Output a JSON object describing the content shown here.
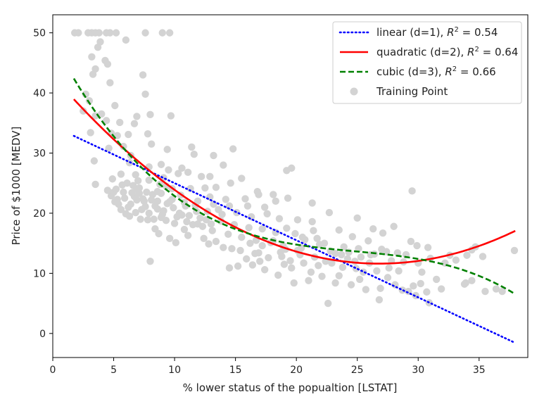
{
  "chart_data": {
    "type": "scatter",
    "title": "",
    "xlabel": "% lower status of the popualtion [LSTAT]",
    "ylabel": "Price of $1000 [MEDV]",
    "xlim": [
      0,
      39
    ],
    "ylim": [
      -4,
      53
    ],
    "xticks": [
      0,
      5,
      10,
      15,
      20,
      25,
      30,
      35
    ],
    "yticks": [
      0,
      10,
      20,
      30,
      40,
      50
    ],
    "grid": false,
    "legend_position": "top-right",
    "legend": [
      {
        "key": "linear",
        "prefix": "linear (d=1), ",
        "r2": "0.54",
        "color": "#0000ff",
        "style": "dotted"
      },
      {
        "key": "quadratic",
        "prefix": "quadratic (d=2), ",
        "r2": "0.64",
        "color": "#ff0000",
        "style": "solid"
      },
      {
        "key": "cubic",
        "prefix": "cubic (d=3), ",
        "r2": "0.66",
        "color": "#008000",
        "style": "dashed"
      },
      {
        "key": "training",
        "prefix": "Training Point",
        "r2": "",
        "color": "#d3d3d3",
        "style": "marker"
      }
    ],
    "fit_range": [
      1.73,
      37.97
    ],
    "series": [
      {
        "name": "linear (d=1)",
        "kind": "polynomial",
        "coefficients": [
          34.5,
          -0.95
        ],
        "color": "#0000ff",
        "style": "dotted"
      },
      {
        "name": "quadratic (d=2)",
        "kind": "polynomial",
        "coefficients": [
          42.86,
          -2.333,
          0.04355
        ],
        "color": "#ff0000",
        "style": "solid"
      },
      {
        "name": "cubic (d=3)",
        "kind": "polynomial",
        "coefficients": [
          48.65,
          -3.866,
          0.1487,
          -0.002004
        ],
        "color": "#008000",
        "style": "dashed"
      },
      {
        "name": "Training Point",
        "kind": "scatter",
        "color": "#d3d3d3",
        "points": [
          [
            1.8,
            50
          ],
          [
            2.1,
            50
          ],
          [
            2.9,
            50
          ],
          [
            3.2,
            50
          ],
          [
            3.5,
            50
          ],
          [
            3.8,
            50
          ],
          [
            4.4,
            50
          ],
          [
            4.7,
            50
          ],
          [
            5.2,
            50
          ],
          [
            7.6,
            50
          ],
          [
            9.0,
            50
          ],
          [
            9.6,
            50
          ],
          [
            6.0,
            48.8
          ],
          [
            3.9,
            48.5
          ],
          [
            3.7,
            47.6
          ],
          [
            4.3,
            45.4
          ],
          [
            3.2,
            46.0
          ],
          [
            4.5,
            44.8
          ],
          [
            3.5,
            44.0
          ],
          [
            3.3,
            43.1
          ],
          [
            7.4,
            43.0
          ],
          [
            4.7,
            41.7
          ],
          [
            2.7,
            39.8
          ],
          [
            7.6,
            39.8
          ],
          [
            3.0,
            38.7
          ],
          [
            5.1,
            37.9
          ],
          [
            2.5,
            37.0
          ],
          [
            4.0,
            36.5
          ],
          [
            9.7,
            36.2
          ],
          [
            6.9,
            36.1
          ],
          [
            8.0,
            36.4
          ],
          [
            3.5,
            36.2
          ],
          [
            4.4,
            35.4
          ],
          [
            5.5,
            35.1
          ],
          [
            6.7,
            34.9
          ],
          [
            3.1,
            33.4
          ],
          [
            4.8,
            33.3
          ],
          [
            6.2,
            33.1
          ],
          [
            7.8,
            33.2
          ],
          [
            5.3,
            32.9
          ],
          [
            8.1,
            31.5
          ],
          [
            5.8,
            31.1
          ],
          [
            4.6,
            30.8
          ],
          [
            9.4,
            30.6
          ],
          [
            11.4,
            31.0
          ],
          [
            14.8,
            30.7
          ],
          [
            11.6,
            29.8
          ],
          [
            13.2,
            29.6
          ],
          [
            6.4,
            29.6
          ],
          [
            3.4,
            28.7
          ],
          [
            6.3,
            28.4
          ],
          [
            8.9,
            28.1
          ],
          [
            7.9,
            27.7
          ],
          [
            10.6,
            27.5
          ],
          [
            19.6,
            27.5
          ],
          [
            19.2,
            27.1
          ],
          [
            10.3,
            26.6
          ],
          [
            6.8,
            26.4
          ],
          [
            9.1,
            25.9
          ],
          [
            12.2,
            26.1
          ],
          [
            14.6,
            25.0
          ],
          [
            3.5,
            24.8
          ],
          [
            5.7,
            24.7
          ],
          [
            7.1,
            24.2
          ],
          [
            9.3,
            24.5
          ],
          [
            11.3,
            24.1
          ],
          [
            13.4,
            24.3
          ],
          [
            16.8,
            23.6
          ],
          [
            18.1,
            23.1
          ],
          [
            19.3,
            22.5
          ],
          [
            29.5,
            23.7
          ],
          [
            21.3,
            21.7
          ],
          [
            14.2,
            22.3
          ],
          [
            15.8,
            22.4
          ],
          [
            12.9,
            22.7
          ],
          [
            5.0,
            23.5
          ],
          [
            5.3,
            22.3
          ],
          [
            6.7,
            22.8
          ],
          [
            7.4,
            22.4
          ],
          [
            8.2,
            23.1
          ],
          [
            9.8,
            22.3
          ],
          [
            11.7,
            21.3
          ],
          [
            13.6,
            20.6
          ],
          [
            15.1,
            20.1
          ],
          [
            16.3,
            19.4
          ],
          [
            17.6,
            19.9
          ],
          [
            18.6,
            19.1
          ],
          [
            20.1,
            18.9
          ],
          [
            22.7,
            20.1
          ],
          [
            21.3,
            18.6
          ],
          [
            25.0,
            19.2
          ],
          [
            5.4,
            21.5
          ],
          [
            6.2,
            21.0
          ],
          [
            7.3,
            20.6
          ],
          [
            8.4,
            21.2
          ],
          [
            9.1,
            20.4
          ],
          [
            10.4,
            20.0
          ],
          [
            11.2,
            19.6
          ],
          [
            12.6,
            18.9
          ],
          [
            13.8,
            18.7
          ],
          [
            14.9,
            18.1
          ],
          [
            16.1,
            17.6
          ],
          [
            17.2,
            17.4
          ],
          [
            18.3,
            16.8
          ],
          [
            19.9,
            16.6
          ],
          [
            21.4,
            17.1
          ],
          [
            23.5,
            17.2
          ],
          [
            26.3,
            17.4
          ],
          [
            27.1,
            16.7
          ],
          [
            28.0,
            17.8
          ],
          [
            24.6,
            16.1
          ],
          [
            25.9,
            15.4
          ],
          [
            20.7,
            15.6
          ],
          [
            6.0,
            19.9
          ],
          [
            7.8,
            18.9
          ],
          [
            8.9,
            19.3
          ],
          [
            10.0,
            18.3
          ],
          [
            11.0,
            18.6
          ],
          [
            12.3,
            17.8
          ],
          [
            13.1,
            17.1
          ],
          [
            14.4,
            16.5
          ],
          [
            15.5,
            16.0
          ],
          [
            16.7,
            15.5
          ],
          [
            17.9,
            15.1
          ],
          [
            18.9,
            14.6
          ],
          [
            20.4,
            14.2
          ],
          [
            21.9,
            14.8
          ],
          [
            22.8,
            13.7
          ],
          [
            23.7,
            13.1
          ],
          [
            24.3,
            13.5
          ],
          [
            26.1,
            13.1
          ],
          [
            27.4,
            13.6
          ],
          [
            28.3,
            13.4
          ],
          [
            29.9,
            14.6
          ],
          [
            30.8,
            14.3
          ],
          [
            34.4,
            13.9
          ],
          [
            34.7,
            14.4
          ],
          [
            37.9,
            13.8
          ],
          [
            8.0,
            12.0
          ],
          [
            10.1,
            15.1
          ],
          [
            12.8,
            14.9
          ],
          [
            14.0,
            14.3
          ],
          [
            15.4,
            13.8
          ],
          [
            16.6,
            13.3
          ],
          [
            17.7,
            12.6
          ],
          [
            18.8,
            12.8
          ],
          [
            19.5,
            12.1
          ],
          [
            20.6,
            11.7
          ],
          [
            21.8,
            11.3
          ],
          [
            22.9,
            11.7
          ],
          [
            23.8,
            11.0
          ],
          [
            24.9,
            10.8
          ],
          [
            25.5,
            10.2
          ],
          [
            26.6,
            10.4
          ],
          [
            27.6,
            10.9
          ],
          [
            28.4,
            10.4
          ],
          [
            15.2,
            11.2
          ],
          [
            16.4,
            11.4
          ],
          [
            17.4,
            10.6
          ],
          [
            18.5,
            9.7
          ],
          [
            19.8,
            8.4
          ],
          [
            21.0,
            8.8
          ],
          [
            22.1,
            9.5
          ],
          [
            23.2,
            8.4
          ],
          [
            24.5,
            8.1
          ],
          [
            25.7,
            7.3
          ],
          [
            26.9,
            7.5
          ],
          [
            28.7,
            7.2
          ],
          [
            29.6,
            7.9
          ],
          [
            29.8,
            6.3
          ],
          [
            30.7,
            6.9
          ],
          [
            30.9,
            5.1
          ],
          [
            31.9,
            7.4
          ],
          [
            33.9,
            8.4
          ],
          [
            34.4,
            8.8
          ],
          [
            36.9,
            7.0
          ],
          [
            22.6,
            5.0
          ],
          [
            26.8,
            5.6
          ],
          [
            29.2,
            7.0
          ],
          [
            6.6,
            24.6
          ],
          [
            7.5,
            22.0
          ],
          [
            8.6,
            22.0
          ],
          [
            9.6,
            21.9
          ],
          [
            10.8,
            21.8
          ],
          [
            11.9,
            22.0
          ],
          [
            12.7,
            20.3
          ],
          [
            13.9,
            19.8
          ],
          [
            10.2,
            19.4
          ],
          [
            11.5,
            18.1
          ],
          [
            8.4,
            17.4
          ],
          [
            8.7,
            16.6
          ],
          [
            9.6,
            15.8
          ],
          [
            12.4,
            15.8
          ],
          [
            13.4,
            15.3
          ],
          [
            14.7,
            14.1
          ],
          [
            16.9,
            13.4
          ],
          [
            17.2,
            14.6
          ],
          [
            18.1,
            15.4
          ],
          [
            19.1,
            14.0
          ],
          [
            20.3,
            13.1
          ],
          [
            21.5,
            12.7
          ],
          [
            22.4,
            12.0
          ],
          [
            19.6,
            10.9
          ],
          [
            14.5,
            10.9
          ],
          [
            15.9,
            12.4
          ],
          [
            23.2,
            13.3
          ],
          [
            24.2,
            12.4
          ],
          [
            25.3,
            12.7
          ],
          [
            26.4,
            13.2
          ],
          [
            27.8,
            12.1
          ],
          [
            28.8,
            11.9
          ],
          [
            30.0,
            11.7
          ],
          [
            30.3,
            10.2
          ],
          [
            31.0,
            12.5
          ],
          [
            5.6,
            26.5
          ],
          [
            4.9,
            25.7
          ],
          [
            6.1,
            25.0
          ],
          [
            7.0,
            25.4
          ],
          [
            7.9,
            25.5
          ],
          [
            8.8,
            24.8
          ],
          [
            5.2,
            24.0
          ],
          [
            6.5,
            23.4
          ],
          [
            7.7,
            23.5
          ],
          [
            8.9,
            23.3
          ],
          [
            10.5,
            23.0
          ],
          [
            4.8,
            22.9
          ],
          [
            5.9,
            22.5
          ],
          [
            6.9,
            22.2
          ],
          [
            8.1,
            22.2
          ],
          [
            9.4,
            21.6
          ],
          [
            10.9,
            21.2
          ],
          [
            5.1,
            21.9
          ],
          [
            6.4,
            21.5
          ],
          [
            7.6,
            21.1
          ],
          [
            8.6,
            20.7
          ],
          [
            9.9,
            20.9
          ],
          [
            11.8,
            20.3
          ],
          [
            5.6,
            20.6
          ],
          [
            6.8,
            20.1
          ],
          [
            7.9,
            20.0
          ],
          [
            9.0,
            19.8
          ],
          [
            10.6,
            19.7
          ],
          [
            12.1,
            19.2
          ],
          [
            6.3,
            19.5
          ],
          [
            7.2,
            19.0
          ],
          [
            8.3,
            19.0
          ],
          [
            9.3,
            18.8
          ],
          [
            11.9,
            18.2
          ],
          [
            13.0,
            18.2
          ],
          [
            6.9,
            24.0
          ],
          [
            4.5,
            23.8
          ],
          [
            5.8,
            23.5
          ],
          [
            7.1,
            23.3
          ],
          [
            8.6,
            23.6
          ],
          [
            9.8,
            24.1
          ],
          [
            12.5,
            24.2
          ],
          [
            12.9,
            26.1
          ],
          [
            11.1,
            26.8
          ],
          [
            9.5,
            27.2
          ],
          [
            14.0,
            28.0
          ],
          [
            15.5,
            25.8
          ],
          [
            16.9,
            23.1
          ],
          [
            18.3,
            22.0
          ],
          [
            17.4,
            21.0
          ],
          [
            16.0,
            21.2
          ],
          [
            14.5,
            21.2
          ],
          [
            13.2,
            21.5
          ],
          [
            10.8,
            17.3
          ],
          [
            11.1,
            16.3
          ],
          [
            19.2,
            17.5
          ],
          [
            20.5,
            16.0
          ],
          [
            21.7,
            15.8
          ],
          [
            22.3,
            15.0
          ],
          [
            23.9,
            14.4
          ],
          [
            25.1,
            14.1
          ],
          [
            20.1,
            13.8
          ],
          [
            24.8,
            12.0
          ],
          [
            17.0,
            12.0
          ],
          [
            19.0,
            11.5
          ],
          [
            16.2,
            15.0
          ],
          [
            18.7,
            13.5
          ],
          [
            21.2,
            10.2
          ],
          [
            23.5,
            9.6
          ],
          [
            25.2,
            9.0
          ],
          [
            26.0,
            11.7
          ],
          [
            27.5,
            9.3
          ],
          [
            28.1,
            8.1
          ],
          [
            30.2,
            8.3
          ],
          [
            31.5,
            9.0
          ],
          [
            33.8,
            8.2
          ],
          [
            35.5,
            7.0
          ],
          [
            36.4,
            7.4
          ],
          [
            32.2,
            11.7
          ],
          [
            33.1,
            12.2
          ],
          [
            34.0,
            13.0
          ],
          [
            29.0,
            13.1
          ],
          [
            27.0,
            14.0
          ],
          [
            29.4,
            15.3
          ],
          [
            32.6,
            13.0
          ],
          [
            35.3,
            12.8
          ]
        ]
      }
    ]
  }
}
